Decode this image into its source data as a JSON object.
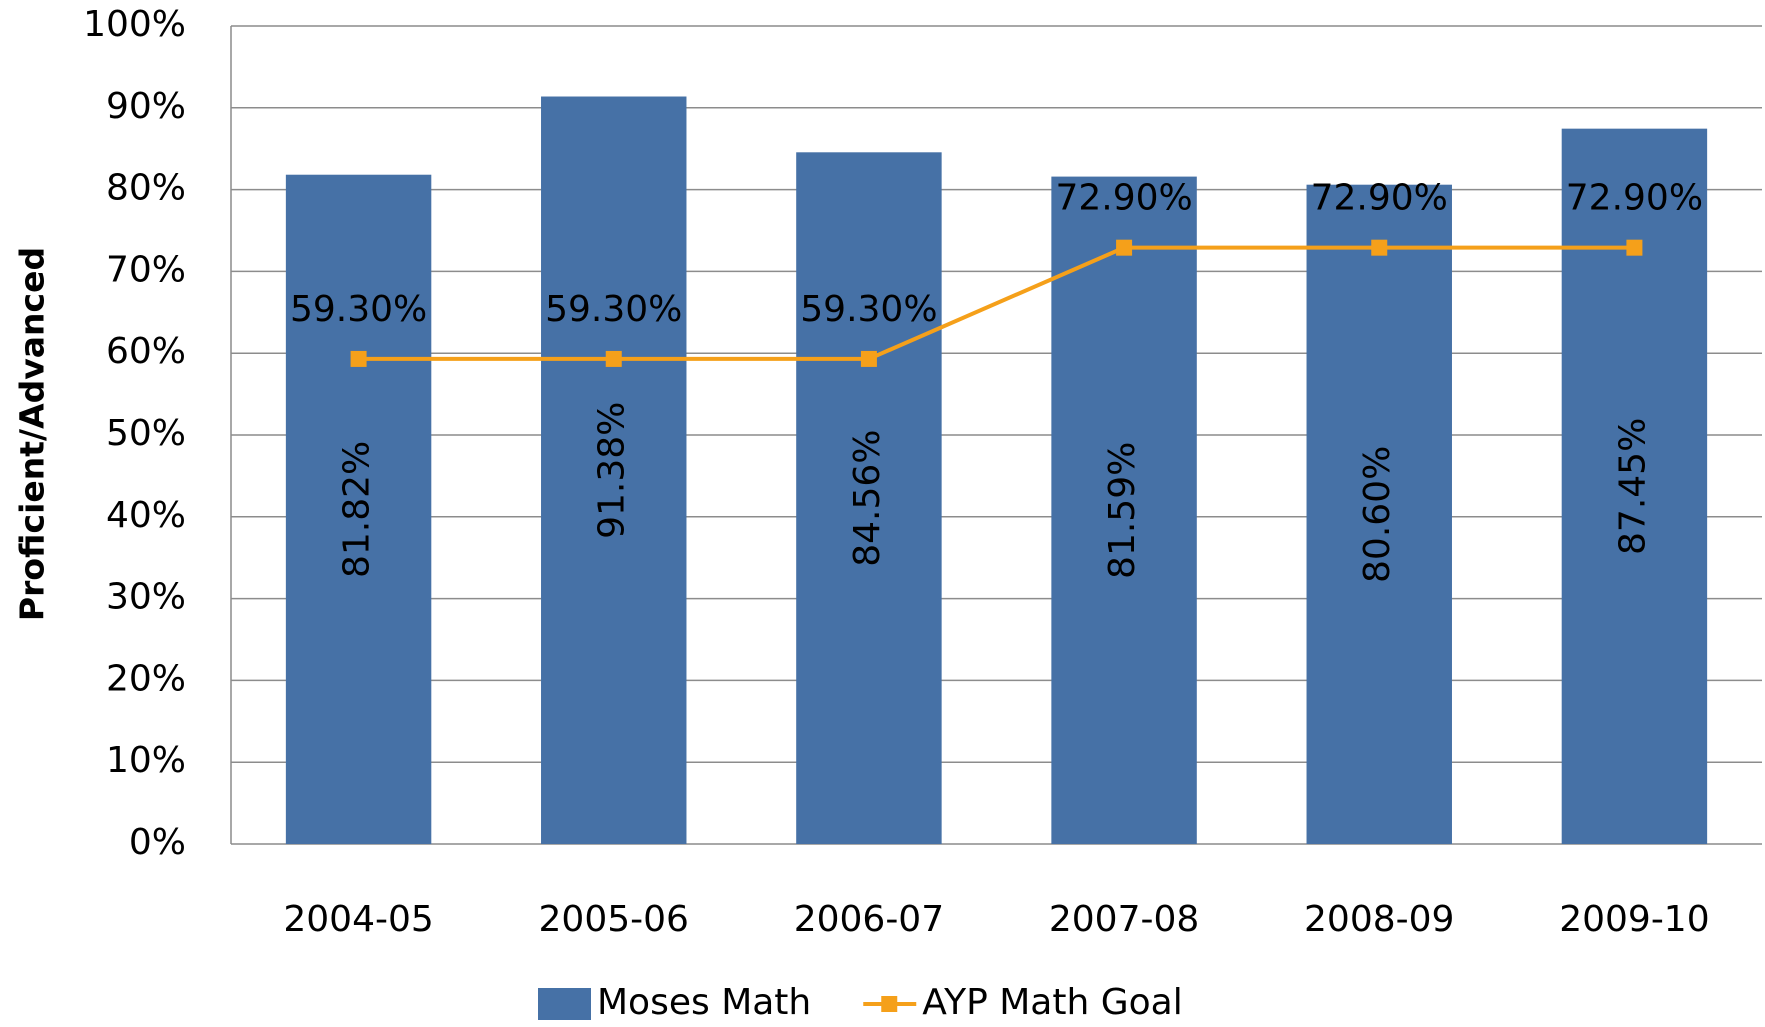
{
  "chart_data": {
    "type": "bar",
    "y_label": "Proficient/Advanced",
    "categories": [
      "2004-05",
      "2005-06",
      "2006-07",
      "2007-08",
      "2008-09",
      "2009-10"
    ],
    "series": [
      {
        "name": "Moses Math",
        "type": "bar",
        "color": "#4671a6",
        "values": [
          81.82,
          91.38,
          84.56,
          81.59,
          80.6,
          87.45
        ],
        "value_labels": [
          "81.82%",
          "91.38%",
          "84.56%",
          "81.59%",
          "80.60%",
          "87.45%"
        ]
      },
      {
        "name": "AYP Math Goal",
        "type": "line",
        "color": "#f5a01a",
        "values": [
          59.3,
          59.3,
          59.3,
          72.9,
          72.9,
          72.9
        ],
        "value_labels": [
          "59.30%",
          "59.30%",
          "59.30%",
          "72.90%",
          "72.90%",
          "72.90%"
        ]
      }
    ],
    "ylim": [
      0,
      100
    ],
    "yticks": [
      {
        "value": 0,
        "label": "0%"
      },
      {
        "value": 10,
        "label": "10%"
      },
      {
        "value": 20,
        "label": "20%"
      },
      {
        "value": 30,
        "label": "30%"
      },
      {
        "value": 40,
        "label": "40%"
      },
      {
        "value": 50,
        "label": "50%"
      },
      {
        "value": 60,
        "label": "60%"
      },
      {
        "value": 70,
        "label": "70%"
      },
      {
        "value": 80,
        "label": "80%"
      },
      {
        "value": 90,
        "label": "90%"
      },
      {
        "value": 100,
        "label": "100%"
      }
    ],
    "grid": true,
    "legend": "bottom"
  }
}
